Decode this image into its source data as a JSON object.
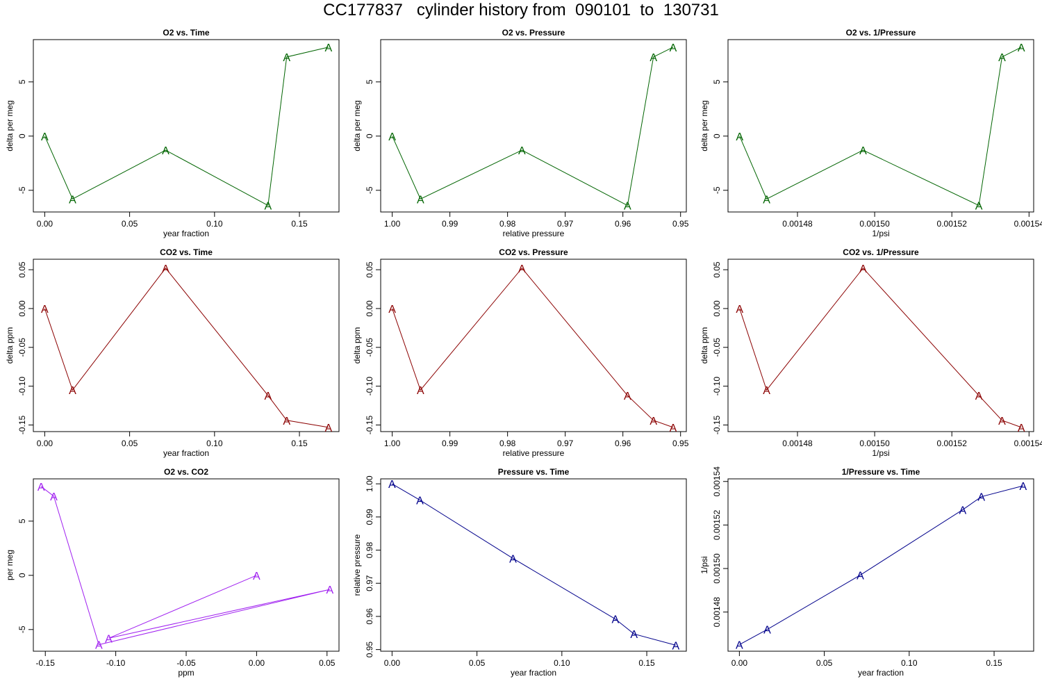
{
  "title": "CC177837   cylinder history from  090101  to  130731",
  "colors": {
    "o2": "#006400",
    "co2": "#8b0000",
    "o2co2": "#a020f0",
    "pressure": "#00008b"
  },
  "point_label": "A",
  "chart_data": [
    {
      "type": "line",
      "title": "O2 vs. Time",
      "xlabel": "year fraction",
      "ylabel": "delta per meg",
      "color": "o2",
      "xlim": [
        -0.0067,
        0.1733
      ],
      "ylim": [
        -7.0,
        8.9
      ],
      "xticks": [
        0.0,
        0.05,
        0.1,
        0.15
      ],
      "xtick_labels": [
        "0.00",
        "0.05",
        "0.10",
        "0.15"
      ],
      "yticks": [
        -5,
        0,
        5
      ],
      "ytick_labels": [
        "-5",
        "0",
        "5"
      ],
      "x": [
        0.0,
        0.0164,
        0.0712,
        0.1315,
        0.1425,
        0.1671
      ],
      "y": [
        0.0,
        -5.8,
        -1.3,
        -6.4,
        7.3,
        8.2
      ]
    },
    {
      "type": "line",
      "title": "O2 vs. Pressure",
      "xlabel": "relative pressure",
      "ylabel": "delta per meg",
      "color": "o2",
      "xlim": [
        1.002,
        0.949
      ],
      "ylim": [
        -7.0,
        8.9
      ],
      "xticks": [
        1.0,
        0.99,
        0.98,
        0.97,
        0.96,
        0.95
      ],
      "xtick_labels": [
        "1.00",
        "0.99",
        "0.98",
        "0.97",
        "0.96",
        "0.95"
      ],
      "yticks": [
        -5,
        0,
        5
      ],
      "ytick_labels": [
        "-5",
        "0",
        "5"
      ],
      "x": [
        1.0,
        0.9951,
        0.9775,
        0.9592,
        0.9547,
        0.9513
      ],
      "y": [
        0.0,
        -5.8,
        -1.3,
        -6.4,
        7.3,
        8.2
      ]
    },
    {
      "type": "line",
      "title": "O2 vs. 1/Pressure",
      "xlabel": "1/psi",
      "ylabel": "delta per meg",
      "color": "o2",
      "xlim": [
        0.001462,
        0.0015412
      ],
      "ylim": [
        -7.0,
        8.9
      ],
      "xticks": [
        0.00148,
        0.0015,
        0.00152,
        0.00154
      ],
      "xtick_labels": [
        "0.00148",
        "0.00150",
        "0.00152",
        "0.00154"
      ],
      "yticks": [
        -5,
        0,
        5
      ],
      "ytick_labels": [
        "-5",
        "0",
        "5"
      ],
      "x": [
        0.001465,
        0.001472,
        0.001497,
        0.001527,
        0.001533,
        0.001538
      ],
      "y": [
        0.0,
        -5.8,
        -1.3,
        -6.4,
        7.3,
        8.2
      ]
    },
    {
      "type": "line",
      "title": "CO2 vs. Time",
      "xlabel": "year fraction",
      "ylabel": "delta ppm",
      "color": "co2",
      "xlim": [
        -0.0067,
        0.1733
      ],
      "ylim": [
        -0.1585,
        0.0635
      ],
      "xticks": [
        0.0,
        0.05,
        0.1,
        0.15
      ],
      "xtick_labels": [
        "0.00",
        "0.05",
        "0.10",
        "0.15"
      ],
      "yticks": [
        -0.15,
        -0.1,
        -0.05,
        0.0,
        0.05
      ],
      "ytick_labels": [
        "-0.15",
        "-0.10",
        "-0.05",
        "0.00",
        "0.05"
      ],
      "x": [
        0.0,
        0.0164,
        0.0712,
        0.1315,
        0.1425,
        0.1671
      ],
      "y": [
        0.0,
        -0.105,
        0.052,
        -0.112,
        -0.144,
        -0.153
      ]
    },
    {
      "type": "line",
      "title": "CO2 vs. Pressure",
      "xlabel": "relative pressure",
      "ylabel": "delta ppm",
      "color": "co2",
      "xlim": [
        1.002,
        0.949
      ],
      "ylim": [
        -0.1585,
        0.0635
      ],
      "xticks": [
        1.0,
        0.99,
        0.98,
        0.97,
        0.96,
        0.95
      ],
      "xtick_labels": [
        "1.00",
        "0.99",
        "0.98",
        "0.97",
        "0.96",
        "0.95"
      ],
      "yticks": [
        -0.15,
        -0.1,
        -0.05,
        0.0,
        0.05
      ],
      "ytick_labels": [
        "-0.15",
        "-0.10",
        "-0.05",
        "0.00",
        "0.05"
      ],
      "x": [
        1.0,
        0.9951,
        0.9775,
        0.9592,
        0.9547,
        0.9513
      ],
      "y": [
        0.0,
        -0.105,
        0.052,
        -0.112,
        -0.144,
        -0.153
      ]
    },
    {
      "type": "line",
      "title": "CO2 vs. 1/Pressure",
      "xlabel": "1/psi",
      "ylabel": "delta ppm",
      "color": "co2",
      "xlim": [
        0.001462,
        0.0015412
      ],
      "ylim": [
        -0.1585,
        0.0635
      ],
      "xticks": [
        0.00148,
        0.0015,
        0.00152,
        0.00154
      ],
      "xtick_labels": [
        "0.00148",
        "0.00150",
        "0.00152",
        "0.00154"
      ],
      "yticks": [
        -0.15,
        -0.1,
        -0.05,
        0.0,
        0.05
      ],
      "ytick_labels": [
        "-0.15",
        "-0.10",
        "-0.05",
        "0.00",
        "0.05"
      ],
      "x": [
        0.001465,
        0.001472,
        0.001497,
        0.001527,
        0.001533,
        0.001538
      ],
      "y": [
        0.0,
        -0.105,
        0.052,
        -0.112,
        -0.144,
        -0.153
      ]
    },
    {
      "type": "line",
      "title": "O2 vs. CO2",
      "xlabel": "ppm",
      "ylabel": "per meg",
      "color": "o2co2",
      "xlim": [
        -0.1585,
        0.0585
      ],
      "ylim": [
        -7.0,
        8.9
      ],
      "xticks": [
        -0.15,
        -0.1,
        -0.05,
        0.0,
        0.05
      ],
      "xtick_labels": [
        "-0.15",
        "-0.10",
        "-0.05",
        "0.00",
        "0.05"
      ],
      "yticks": [
        -5,
        0,
        5
      ],
      "ytick_labels": [
        "-5",
        "0",
        "5"
      ],
      "x": [
        0.0,
        -0.105,
        0.052,
        -0.112,
        -0.144,
        -0.153
      ],
      "y": [
        0.0,
        -5.8,
        -1.3,
        -6.4,
        7.3,
        8.2
      ]
    },
    {
      "type": "line",
      "title": "Pressure vs. Time",
      "xlabel": "year fraction",
      "ylabel": "relative pressure",
      "color": "pressure",
      "xlim": [
        -0.0067,
        0.1733
      ],
      "ylim": [
        0.9495,
        1.0015
      ],
      "xticks": [
        0.0,
        0.05,
        0.1,
        0.15
      ],
      "xtick_labels": [
        "0.00",
        "0.05",
        "0.10",
        "0.15"
      ],
      "yticks": [
        0.95,
        0.96,
        0.97,
        0.98,
        0.99,
        1.0
      ],
      "ytick_labels": [
        "0.95",
        "0.96",
        "0.97",
        "0.98",
        "0.99",
        "1.00"
      ],
      "x": [
        0.0,
        0.0164,
        0.0712,
        0.1315,
        0.1425,
        0.1671
      ],
      "y": [
        1.0,
        0.9951,
        0.9775,
        0.9592,
        0.9547,
        0.9513
      ]
    },
    {
      "type": "line",
      "title": "1/Pressure vs. Time",
      "xlabel": "year fraction",
      "ylabel": "1/psi",
      "color": "pressure",
      "xlim": [
        -0.0067,
        0.1733
      ],
      "ylim": [
        0.001462,
        0.0015412
      ],
      "xticks": [
        0.0,
        0.05,
        0.1,
        0.15
      ],
      "xtick_labels": [
        "0.00",
        "0.05",
        "0.10",
        "0.15"
      ],
      "yticks": [
        0.00148,
        0.0015,
        0.00152,
        0.00154
      ],
      "ytick_labels": [
        "0.00148",
        "0.00150",
        "0.00152",
        "0.00154"
      ],
      "x": [
        0.0,
        0.0164,
        0.0712,
        0.1315,
        0.1425,
        0.1671
      ],
      "y": [
        0.001465,
        0.001472,
        0.001497,
        0.001527,
        0.001533,
        0.001538
      ]
    }
  ]
}
